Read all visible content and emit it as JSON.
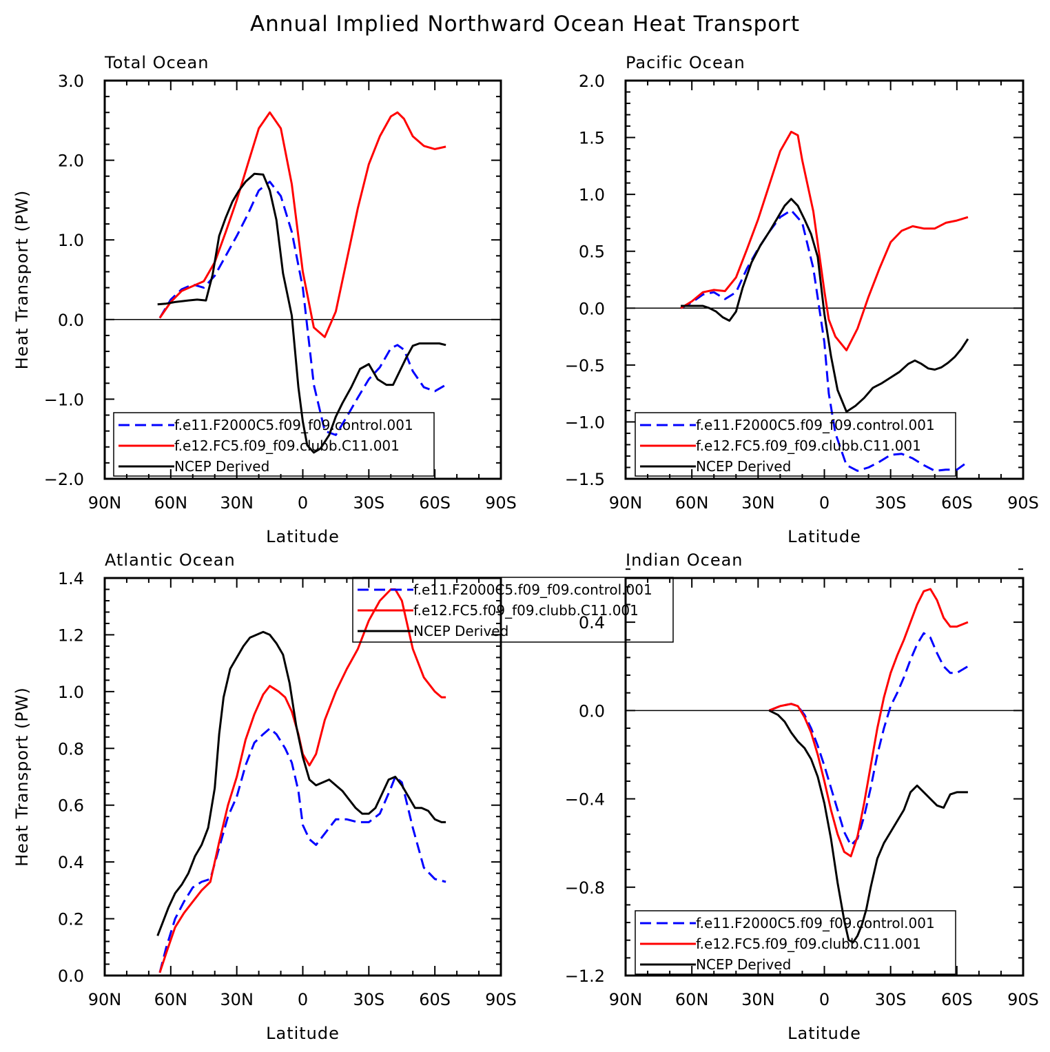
{
  "figure": {
    "title": "Annual Implied Northward Ocean Heat Transport"
  },
  "colors": {
    "control": "#0000ff",
    "clubb": "#ff0000",
    "ncep": "#000000"
  },
  "chart_data": [
    {
      "type": "line",
      "title": "Total Ocean",
      "xlabel": "Latitude",
      "ylabel": "Heat Transport (PW)",
      "x_direction": "north-to-south",
      "xlim": [
        90,
        -90
      ],
      "xticks": [
        90,
        60,
        30,
        0,
        -30,
        -60,
        -90
      ],
      "xtick_labels": [
        "90N",
        "60N",
        "30N",
        "0",
        "30S",
        "60S",
        "90S"
      ],
      "ylim": [
        -2.0,
        3.0
      ],
      "yticks": [
        -2.0,
        -1.0,
        0.0,
        1.0,
        2.0,
        3.0
      ],
      "ytick_labels": [
        "−2.0",
        "−1.0",
        "0.0",
        "1.0",
        "2.0",
        "3.0"
      ],
      "legend": {
        "position": "bottom-left"
      },
      "series": [
        {
          "name": "f.e11.F2000C5.f09_f09.control.001",
          "color": "#0000ff",
          "style": "dashed",
          "x": [
            65,
            60,
            55,
            50,
            45,
            40,
            35,
            30,
            25,
            20,
            15,
            10,
            5,
            0,
            -5,
            -10,
            -15,
            -20,
            -25,
            -30,
            -35,
            -40,
            -43,
            -46,
            -50,
            -55,
            -60,
            -65
          ],
          "y": [
            0.02,
            0.25,
            0.38,
            0.44,
            0.4,
            0.55,
            0.8,
            1.05,
            1.32,
            1.62,
            1.73,
            1.55,
            1.1,
            0.4,
            -0.82,
            -1.4,
            -1.45,
            -1.22,
            -0.98,
            -0.75,
            -0.6,
            -0.36,
            -0.32,
            -0.38,
            -0.65,
            -0.85,
            -0.9,
            -0.82
          ]
        },
        {
          "name": "f.e12.FC5.f09_f09.clubb.C11.001",
          "color": "#ff0000",
          "style": "solid",
          "x": [
            65,
            60,
            55,
            50,
            45,
            40,
            35,
            30,
            25,
            20,
            15,
            10,
            5,
            0,
            -5,
            -10,
            -15,
            -20,
            -25,
            -30,
            -35,
            -40,
            -43,
            -46,
            -50,
            -55,
            -60,
            -65
          ],
          "y": [
            0.02,
            0.22,
            0.36,
            0.42,
            0.48,
            0.72,
            1.1,
            1.5,
            1.95,
            2.4,
            2.6,
            2.4,
            1.7,
            0.6,
            -0.1,
            -0.22,
            0.1,
            0.75,
            1.4,
            1.95,
            2.3,
            2.55,
            2.6,
            2.52,
            2.3,
            2.18,
            2.14,
            2.17
          ]
        },
        {
          "name": "NCEP Derived",
          "color": "#000000",
          "style": "solid",
          "x": [
            66,
            62,
            58,
            52,
            48,
            44,
            41,
            38,
            35,
            32,
            29,
            26,
            22,
            18,
            15,
            12,
            9,
            5,
            2,
            0,
            -2,
            -5,
            -8,
            -12,
            -15,
            -18,
            -22,
            -26,
            -30,
            -34,
            -38,
            -41,
            -44,
            -47,
            -50,
            -53,
            -56,
            -59,
            -62,
            -65
          ],
          "y": [
            0.19,
            0.2,
            0.22,
            0.24,
            0.25,
            0.24,
            0.56,
            1.05,
            1.28,
            1.48,
            1.62,
            1.73,
            1.83,
            1.82,
            1.62,
            1.25,
            0.58,
            0.05,
            -0.85,
            -1.28,
            -1.58,
            -1.67,
            -1.62,
            -1.45,
            -1.22,
            -1.05,
            -0.85,
            -0.62,
            -0.56,
            -0.75,
            -0.82,
            -0.82,
            -0.65,
            -0.48,
            -0.33,
            -0.3,
            -0.3,
            -0.3,
            -0.3,
            -0.32
          ]
        }
      ]
    },
    {
      "type": "line",
      "title": "Pacific Ocean",
      "xlabel": "Latitude",
      "ylabel": "",
      "x_direction": "north-to-south",
      "xlim": [
        90,
        -90
      ],
      "xticks": [
        90,
        60,
        30,
        0,
        -30,
        -60,
        -90
      ],
      "xtick_labels": [
        "90N",
        "60N",
        "30N",
        "0",
        "30S",
        "60S",
        "90S"
      ],
      "ylim": [
        -1.5,
        2.0
      ],
      "yticks": [
        -1.5,
        -1.0,
        -0.5,
        0.0,
        0.5,
        1.0,
        1.5,
        2.0
      ],
      "ytick_labels": [
        "−1.5",
        "−1.0",
        "−0.5",
        "0.0",
        "0.5",
        "1.0",
        "1.5",
        "2.0"
      ],
      "legend": {
        "position": "bottom-left"
      },
      "series": [
        {
          "name": "f.e11.F2000C5.f09_f09.control.001",
          "color": "#0000ff",
          "style": "dashed",
          "x": [
            65,
            60,
            55,
            50,
            45,
            40,
            35,
            30,
            25,
            20,
            15,
            10,
            5,
            0,
            -2,
            -5,
            -10,
            -15,
            -20,
            -25,
            -30,
            -35,
            -40,
            -45,
            -50,
            -55,
            -60,
            -65
          ],
          "y": [
            0.0,
            0.05,
            0.12,
            0.14,
            0.08,
            0.14,
            0.35,
            0.52,
            0.67,
            0.8,
            0.86,
            0.75,
            0.35,
            -0.3,
            -0.75,
            -1.1,
            -1.38,
            -1.43,
            -1.4,
            -1.35,
            -1.29,
            -1.28,
            -1.32,
            -1.38,
            -1.43,
            -1.42,
            -1.42,
            -1.35
          ]
        },
        {
          "name": "f.e12.FC5.f09_f09.clubb.C11.001",
          "color": "#ff0000",
          "style": "solid",
          "x": [
            65,
            60,
            55,
            50,
            45,
            40,
            35,
            30,
            25,
            20,
            15,
            12,
            10,
            5,
            0,
            -2,
            -5,
            -10,
            -15,
            -20,
            -25,
            -30,
            -35,
            -40,
            -45,
            -50,
            -55,
            -60,
            -65
          ],
          "y": [
            0.0,
            0.06,
            0.14,
            0.16,
            0.15,
            0.27,
            0.52,
            0.78,
            1.08,
            1.38,
            1.55,
            1.52,
            1.3,
            0.85,
            0.15,
            -0.1,
            -0.25,
            -0.37,
            -0.18,
            0.1,
            0.35,
            0.58,
            0.68,
            0.72,
            0.7,
            0.7,
            0.75,
            0.77,
            0.8
          ]
        },
        {
          "name": "NCEP Derived",
          "color": "#000000",
          "style": "solid",
          "x": [
            65,
            62,
            58,
            55,
            52,
            49,
            46,
            43,
            40,
            37,
            33,
            29,
            25,
            21,
            18,
            15,
            12,
            9,
            6,
            3,
            0,
            -3,
            -6,
            -10,
            -14,
            -18,
            -22,
            -26,
            -30,
            -34,
            -38,
            -41,
            -44,
            -47,
            -50,
            -53,
            -56,
            -59,
            -62,
            -65
          ],
          "y": [
            0.02,
            0.02,
            0.02,
            0.02,
            0.0,
            -0.03,
            -0.08,
            -0.11,
            -0.03,
            0.18,
            0.4,
            0.55,
            0.67,
            0.8,
            0.9,
            0.96,
            0.9,
            0.78,
            0.65,
            0.45,
            -0.05,
            -0.42,
            -0.72,
            -0.91,
            -0.86,
            -0.79,
            -0.7,
            -0.66,
            -0.61,
            -0.56,
            -0.49,
            -0.46,
            -0.49,
            -0.53,
            -0.54,
            -0.52,
            -0.48,
            -0.43,
            -0.36,
            -0.27
          ]
        }
      ]
    },
    {
      "type": "line",
      "title": "Atlantic Ocean",
      "xlabel": "Latitude",
      "ylabel": "Heat Transport (PW)",
      "x_direction": "north-to-south",
      "xlim": [
        90,
        -90
      ],
      "xticks": [
        90,
        60,
        30,
        0,
        -30,
        -60,
        -90
      ],
      "xtick_labels": [
        "90N",
        "60N",
        "30N",
        "0",
        "30S",
        "60S",
        "90S"
      ],
      "ylim": [
        0.0,
        1.4
      ],
      "yticks": [
        0.0,
        0.2,
        0.4,
        0.6,
        0.8,
        1.0,
        1.2,
        1.4
      ],
      "ytick_labels": [
        "0.0",
        "0.2",
        "0.4",
        "0.6",
        "0.8",
        "1.0",
        "1.2",
        "1.4"
      ],
      "legend": {
        "position": "top-center"
      },
      "series": [
        {
          "name": "f.e11.F2000C5.f09_f09.control.001",
          "color": "#0000ff",
          "style": "dashed",
          "x": [
            65,
            62,
            58,
            54,
            50,
            46,
            42,
            38,
            34,
            30,
            26,
            22,
            18,
            15,
            12,
            8,
            5,
            2,
            0,
            -3,
            -6,
            -10,
            -15,
            -20,
            -25,
            -30,
            -35,
            -40,
            -42,
            -45,
            -50,
            -55,
            -60,
            -65
          ],
          "y": [
            0.01,
            0.1,
            0.2,
            0.26,
            0.31,
            0.33,
            0.34,
            0.45,
            0.56,
            0.63,
            0.74,
            0.82,
            0.85,
            0.87,
            0.85,
            0.8,
            0.75,
            0.65,
            0.53,
            0.48,
            0.46,
            0.5,
            0.55,
            0.55,
            0.54,
            0.54,
            0.57,
            0.66,
            0.7,
            0.68,
            0.52,
            0.38,
            0.34,
            0.33
          ]
        },
        {
          "name": "f.e12.FC5.f09_f09.clubb.C11.001",
          "color": "#ff0000",
          "style": "solid",
          "x": [
            65,
            62,
            58,
            54,
            50,
            46,
            42,
            38,
            34,
            30,
            26,
            22,
            18,
            15,
            13,
            11,
            8,
            5,
            2,
            0,
            -3,
            -6,
            -10,
            -15,
            -20,
            -25,
            -30,
            -35,
            -40,
            -42,
            -45,
            -50,
            -55,
            -60,
            -63,
            -65
          ],
          "y": [
            0.01,
            0.08,
            0.17,
            0.22,
            0.26,
            0.3,
            0.33,
            0.47,
            0.6,
            0.7,
            0.83,
            0.92,
            0.99,
            1.02,
            1.01,
            1.0,
            0.98,
            0.93,
            0.85,
            0.78,
            0.74,
            0.78,
            0.9,
            1.0,
            1.08,
            1.15,
            1.25,
            1.32,
            1.36,
            1.36,
            1.32,
            1.15,
            1.05,
            1.0,
            0.98,
            0.98
          ]
        },
        {
          "name": "NCEP Derived",
          "color": "#000000",
          "style": "solid",
          "x": [
            66,
            64,
            61,
            58,
            55,
            52,
            49,
            46,
            43,
            40,
            38,
            36,
            33,
            30,
            27,
            24,
            21,
            18,
            15,
            12,
            9,
            6,
            3,
            0,
            -3,
            -6,
            -9,
            -12,
            -15,
            -18,
            -21,
            -24,
            -27,
            -30,
            -33,
            -36,
            -39,
            -42,
            -45,
            -48,
            -51,
            -54,
            -57,
            -60,
            -63,
            -65
          ],
          "y": [
            0.14,
            0.18,
            0.24,
            0.29,
            0.32,
            0.36,
            0.42,
            0.46,
            0.52,
            0.66,
            0.85,
            0.98,
            1.08,
            1.12,
            1.16,
            1.19,
            1.2,
            1.21,
            1.2,
            1.17,
            1.13,
            1.03,
            0.88,
            0.77,
            0.69,
            0.67,
            0.68,
            0.69,
            0.67,
            0.65,
            0.62,
            0.59,
            0.57,
            0.57,
            0.59,
            0.64,
            0.69,
            0.7,
            0.67,
            0.63,
            0.59,
            0.59,
            0.58,
            0.55,
            0.54,
            0.54
          ]
        }
      ]
    },
    {
      "type": "line",
      "title": "Indian Ocean",
      "xlabel": "Latitude",
      "ylabel": "",
      "x_direction": "north-to-south",
      "xlim": [
        90,
        -90
      ],
      "xticks": [
        90,
        60,
        30,
        0,
        -30,
        -60,
        -90
      ],
      "xtick_labels": [
        "90N",
        "60N",
        "30N",
        "0",
        "30S",
        "60S",
        "90S"
      ],
      "ylim": [
        -1.2,
        0.6
      ],
      "yticks": [
        -1.2,
        -0.8,
        -0.4,
        0.0,
        0.4
      ],
      "ytick_labels": [
        "−1.2",
        "−0.8",
        "−0.4",
        "0.0",
        "0.4"
      ],
      "legend": {
        "position": "bottom-left"
      },
      "series": [
        {
          "name": "f.e11.F2000C5.f09_f09.control.001",
          "color": "#0000ff",
          "style": "dashed",
          "x": [
            25,
            20,
            15,
            12,
            9,
            6,
            3,
            0,
            -3,
            -6,
            -9,
            -12,
            -15,
            -18,
            -21,
            -24,
            -27,
            -30,
            -33,
            -36,
            -39,
            -42,
            -45,
            -48,
            -51,
            -54,
            -57,
            -60,
            -65
          ],
          "y": [
            0.0,
            0.02,
            0.03,
            0.02,
            -0.02,
            -0.08,
            -0.16,
            -0.25,
            -0.35,
            -0.45,
            -0.55,
            -0.61,
            -0.58,
            -0.48,
            -0.35,
            -0.2,
            -0.08,
            0.02,
            0.08,
            0.15,
            0.23,
            0.3,
            0.35,
            0.33,
            0.26,
            0.2,
            0.17,
            0.17,
            0.2
          ]
        },
        {
          "name": "f.e12.FC5.f09_f09.clubb.C11.001",
          "color": "#ff0000",
          "style": "solid",
          "x": [
            25,
            20,
            15,
            12,
            9,
            6,
            3,
            0,
            -3,
            -6,
            -9,
            -12,
            -15,
            -18,
            -21,
            -24,
            -27,
            -30,
            -33,
            -36,
            -39,
            -42,
            -45,
            -48,
            -51,
            -54,
            -57,
            -60,
            -65
          ],
          "y": [
            0.0,
            0.02,
            0.03,
            0.02,
            -0.03,
            -0.1,
            -0.2,
            -0.32,
            -0.45,
            -0.56,
            -0.64,
            -0.66,
            -0.57,
            -0.42,
            -0.25,
            -0.08,
            0.06,
            0.17,
            0.25,
            0.32,
            0.4,
            0.48,
            0.54,
            0.55,
            0.5,
            0.42,
            0.38,
            0.38,
            0.4
          ]
        },
        {
          "name": "NCEP Derived",
          "color": "#000000",
          "style": "solid",
          "x": [
            25,
            21,
            18,
            15,
            12,
            9,
            6,
            3,
            0,
            -3,
            -6,
            -9,
            -11,
            -13,
            -15,
            -17,
            -19,
            -21,
            -24,
            -27,
            -30,
            -33,
            -36,
            -39,
            -42,
            -45,
            -48,
            -51,
            -54,
            -57,
            -60,
            -63,
            -65
          ],
          "y": [
            0.0,
            -0.02,
            -0.05,
            -0.1,
            -0.14,
            -0.17,
            -0.22,
            -0.3,
            -0.42,
            -0.58,
            -0.78,
            -0.95,
            -1.04,
            -1.05,
            -1.02,
            -0.97,
            -0.9,
            -0.8,
            -0.67,
            -0.6,
            -0.55,
            -0.5,
            -0.45,
            -0.37,
            -0.34,
            -0.37,
            -0.4,
            -0.43,
            -0.44,
            -0.38,
            -0.37,
            -0.37,
            -0.37
          ]
        }
      ]
    }
  ]
}
